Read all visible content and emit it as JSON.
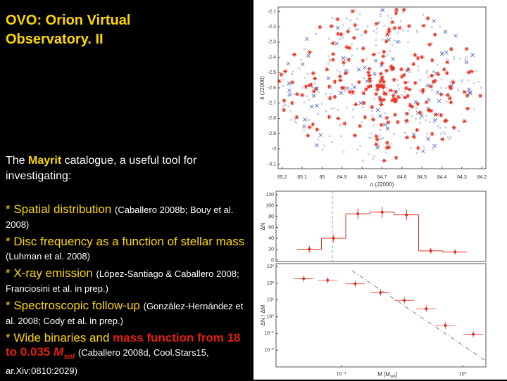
{
  "title": "OVO: Orion Virtual Observatory. II",
  "intro": {
    "text_before": "The ",
    "highlight": "Mayrit",
    "text_after": " catalogue, a useful tool for investigating:"
  },
  "bullets": [
    {
      "topic": "* Spatial distribution",
      "ref": "(Caballero 2008b; Bouy et al. 2008)"
    },
    {
      "topic": "* Disc frequency as a function of stellar mass",
      "ref": "(Luhman et al. 2008)"
    },
    {
      "topic": "* X-ray emission",
      "ref": "(López-Santiago & Caballero 2008; Franciosini et al. in prep.)"
    },
    {
      "topic": "* Spectroscopic follow-up",
      "ref": "(González-Hernández et al. 2008; Cody et al. in prep.)"
    },
    {
      "topic": "* Wide binaries and ",
      "topic_highlight": "mass function from 18 to 0.035 ",
      "symbol": "M",
      "symbol_sub": "sol",
      "ref": "(Caballero 2008d, Cool.Stars15, ar.Xiv:0810:2029)"
    }
  ],
  "figures": {
    "map": {
      "type": "scatter",
      "xlabel": "α (J2000)",
      "ylabel": "δ (J2000)",
      "xlim": [
        85.22,
        84.18
      ],
      "xticks": [
        85.2,
        85.1,
        85,
        84.9,
        84.8,
        84.7,
        84.6,
        84.5,
        84.4,
        84.3,
        84.2
      ],
      "ylim": [
        -2.07,
        -3.13
      ],
      "yticks": [
        -2.1,
        -2.2,
        -2.3,
        -2.4,
        -2.5,
        -2.6,
        -2.7,
        -2.8,
        -2.9,
        -3,
        -3.1
      ]
    },
    "histogram": {
      "type": "step",
      "ylabel": "ΔN",
      "color": "#e03020",
      "values": [
        20,
        40,
        85,
        88,
        83,
        17,
        15
      ],
      "errors": [
        6,
        7,
        10,
        10,
        10,
        5,
        5
      ],
      "ylim": [
        0,
        120
      ],
      "yticks": [
        0,
        20,
        40,
        60,
        80,
        100,
        120
      ]
    },
    "mass_function": {
      "type": "scatter",
      "ylabel": "ΔN / ΔM",
      "xlabel": {
        "text": "M [M",
        "sub": "sol",
        "end": "]"
      },
      "log_x": true,
      "log_y": true,
      "color": "#e03020",
      "x": [
        0.049,
        0.077,
        0.13,
        0.21,
        0.33,
        0.5,
        0.72,
        1.22
      ],
      "values": [
        190,
        150,
        93,
        28,
        9.6,
        3,
        0.3,
        0.09
      ],
      "xlim": [
        0.029,
        1.55
      ],
      "xticks": [
        {
          "value": 0.1,
          "label": "10⁻¹"
        },
        {
          "value": 1,
          "label": "10⁰"
        }
      ],
      "ylim": [
        0.001,
        1500
      ],
      "yticks": [
        {
          "value": 1000,
          "label": "10³"
        },
        {
          "value": 100,
          "label": "10²"
        },
        {
          "value": 10,
          "label": "10¹"
        },
        {
          "value": 1,
          "label": "10⁰"
        },
        {
          "value": 0.1,
          "label": "10⁻¹"
        },
        {
          "value": 0.01,
          "label": "10⁻²"
        }
      ]
    }
  }
}
